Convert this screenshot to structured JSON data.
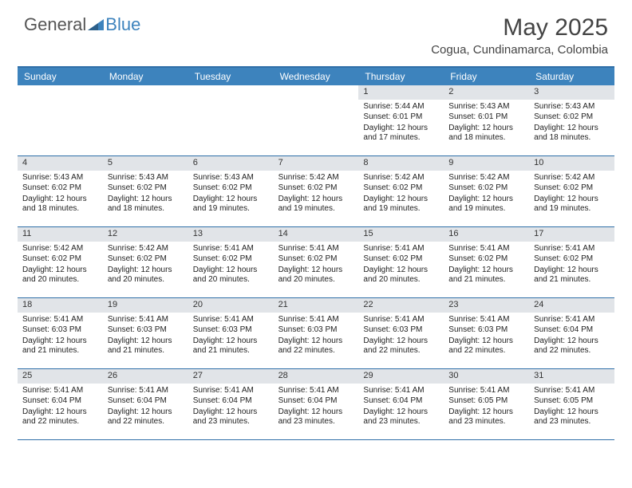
{
  "logo": {
    "general": "General",
    "blue": "Blue"
  },
  "title": "May 2025",
  "location": "Cogua, Cundinamarca, Colombia",
  "colors": {
    "header_bg": "#3d83bd",
    "border": "#2f6fa8",
    "daynum_bg": "#e1e4e8",
    "text": "#222222",
    "title_text": "#444444"
  },
  "dayNames": [
    "Sunday",
    "Monday",
    "Tuesday",
    "Wednesday",
    "Thursday",
    "Friday",
    "Saturday"
  ],
  "leadingBlanks": 4,
  "days": [
    {
      "n": 1,
      "sr": "5:44 AM",
      "ss": "6:01 PM",
      "dl": "12 hours and 17 minutes."
    },
    {
      "n": 2,
      "sr": "5:43 AM",
      "ss": "6:01 PM",
      "dl": "12 hours and 18 minutes."
    },
    {
      "n": 3,
      "sr": "5:43 AM",
      "ss": "6:02 PM",
      "dl": "12 hours and 18 minutes."
    },
    {
      "n": 4,
      "sr": "5:43 AM",
      "ss": "6:02 PM",
      "dl": "12 hours and 18 minutes."
    },
    {
      "n": 5,
      "sr": "5:43 AM",
      "ss": "6:02 PM",
      "dl": "12 hours and 18 minutes."
    },
    {
      "n": 6,
      "sr": "5:43 AM",
      "ss": "6:02 PM",
      "dl": "12 hours and 19 minutes."
    },
    {
      "n": 7,
      "sr": "5:42 AM",
      "ss": "6:02 PM",
      "dl": "12 hours and 19 minutes."
    },
    {
      "n": 8,
      "sr": "5:42 AM",
      "ss": "6:02 PM",
      "dl": "12 hours and 19 minutes."
    },
    {
      "n": 9,
      "sr": "5:42 AM",
      "ss": "6:02 PM",
      "dl": "12 hours and 19 minutes."
    },
    {
      "n": 10,
      "sr": "5:42 AM",
      "ss": "6:02 PM",
      "dl": "12 hours and 19 minutes."
    },
    {
      "n": 11,
      "sr": "5:42 AM",
      "ss": "6:02 PM",
      "dl": "12 hours and 20 minutes."
    },
    {
      "n": 12,
      "sr": "5:42 AM",
      "ss": "6:02 PM",
      "dl": "12 hours and 20 minutes."
    },
    {
      "n": 13,
      "sr": "5:41 AM",
      "ss": "6:02 PM",
      "dl": "12 hours and 20 minutes."
    },
    {
      "n": 14,
      "sr": "5:41 AM",
      "ss": "6:02 PM",
      "dl": "12 hours and 20 minutes."
    },
    {
      "n": 15,
      "sr": "5:41 AM",
      "ss": "6:02 PM",
      "dl": "12 hours and 20 minutes."
    },
    {
      "n": 16,
      "sr": "5:41 AM",
      "ss": "6:02 PM",
      "dl": "12 hours and 21 minutes."
    },
    {
      "n": 17,
      "sr": "5:41 AM",
      "ss": "6:02 PM",
      "dl": "12 hours and 21 minutes."
    },
    {
      "n": 18,
      "sr": "5:41 AM",
      "ss": "6:03 PM",
      "dl": "12 hours and 21 minutes."
    },
    {
      "n": 19,
      "sr": "5:41 AM",
      "ss": "6:03 PM",
      "dl": "12 hours and 21 minutes."
    },
    {
      "n": 20,
      "sr": "5:41 AM",
      "ss": "6:03 PM",
      "dl": "12 hours and 21 minutes."
    },
    {
      "n": 21,
      "sr": "5:41 AM",
      "ss": "6:03 PM",
      "dl": "12 hours and 22 minutes."
    },
    {
      "n": 22,
      "sr": "5:41 AM",
      "ss": "6:03 PM",
      "dl": "12 hours and 22 minutes."
    },
    {
      "n": 23,
      "sr": "5:41 AM",
      "ss": "6:03 PM",
      "dl": "12 hours and 22 minutes."
    },
    {
      "n": 24,
      "sr": "5:41 AM",
      "ss": "6:04 PM",
      "dl": "12 hours and 22 minutes."
    },
    {
      "n": 25,
      "sr": "5:41 AM",
      "ss": "6:04 PM",
      "dl": "12 hours and 22 minutes."
    },
    {
      "n": 26,
      "sr": "5:41 AM",
      "ss": "6:04 PM",
      "dl": "12 hours and 22 minutes."
    },
    {
      "n": 27,
      "sr": "5:41 AM",
      "ss": "6:04 PM",
      "dl": "12 hours and 23 minutes."
    },
    {
      "n": 28,
      "sr": "5:41 AM",
      "ss": "6:04 PM",
      "dl": "12 hours and 23 minutes."
    },
    {
      "n": 29,
      "sr": "5:41 AM",
      "ss": "6:04 PM",
      "dl": "12 hours and 23 minutes."
    },
    {
      "n": 30,
      "sr": "5:41 AM",
      "ss": "6:05 PM",
      "dl": "12 hours and 23 minutes."
    },
    {
      "n": 31,
      "sr": "5:41 AM",
      "ss": "6:05 PM",
      "dl": "12 hours and 23 minutes."
    }
  ],
  "labels": {
    "sunrise": "Sunrise: ",
    "sunset": "Sunset: ",
    "daylight": "Daylight: "
  }
}
